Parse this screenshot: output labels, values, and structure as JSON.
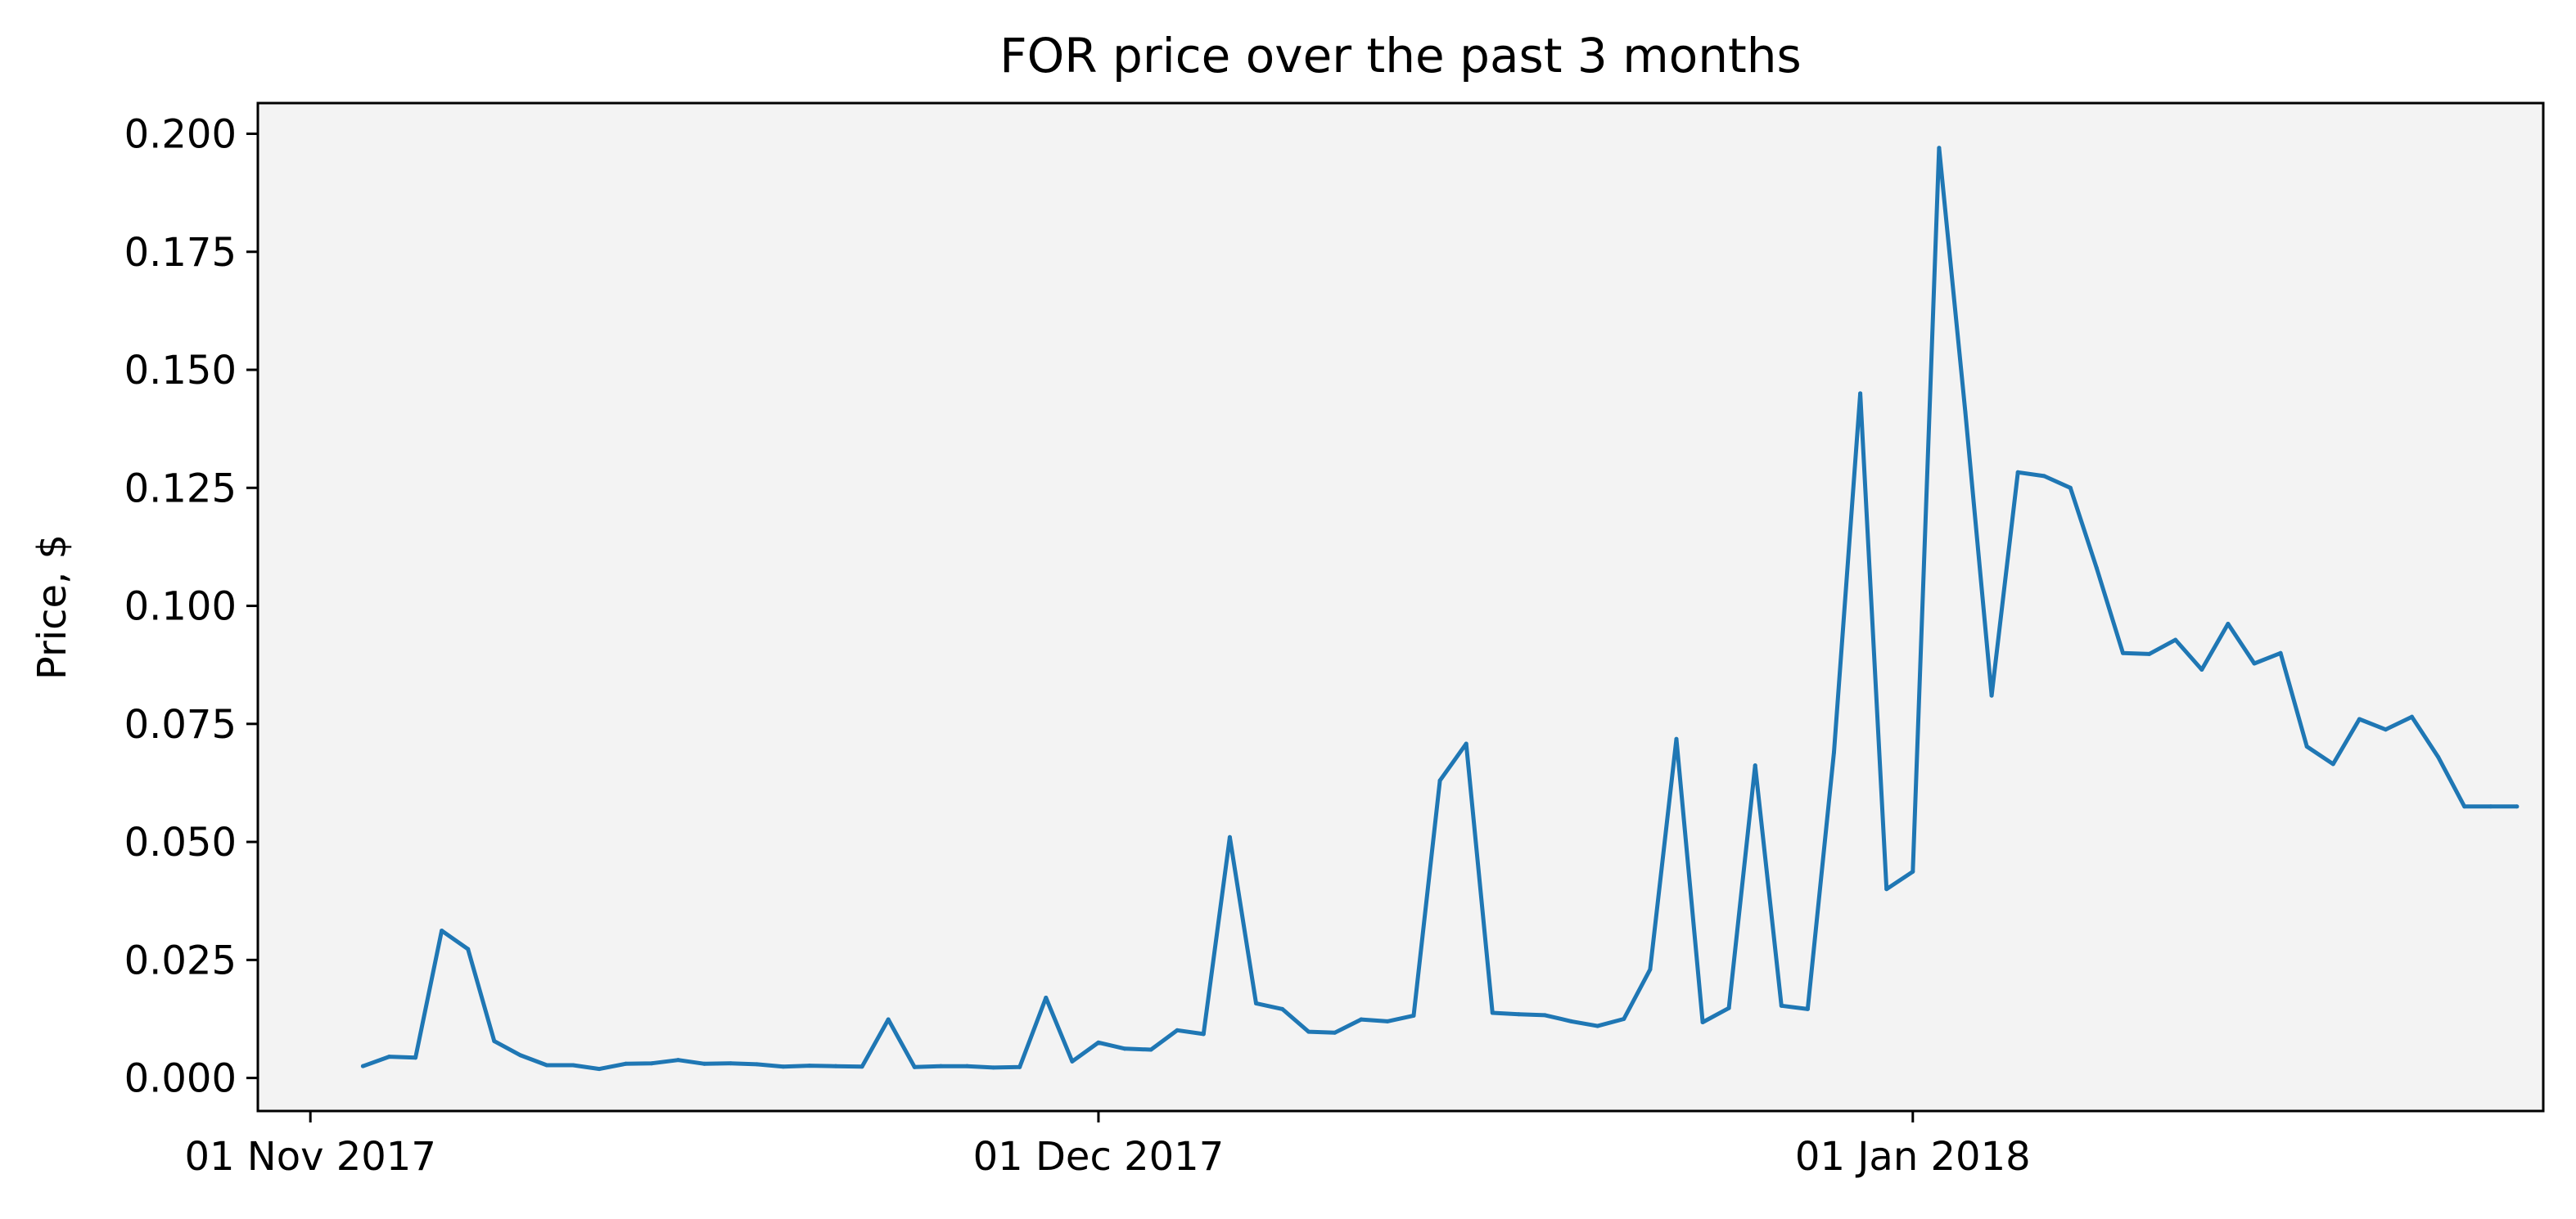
{
  "chart_data": {
    "type": "line",
    "title": "FOR price over the past 3 months",
    "xlabel": "",
    "ylabel": "Price, $",
    "x_tick_labels": [
      {
        "date": "2017-11-01",
        "label": "01 Nov 2017"
      },
      {
        "date": "2017-12-01",
        "label": "01 Dec 2017"
      },
      {
        "date": "2018-01-01",
        "label": "01 Jan 2018"
      }
    ],
    "y_ticks": [
      "0.000",
      "0.025",
      "0.050",
      "0.075",
      "0.100",
      "0.125",
      "0.150",
      "0.175",
      "0.200"
    ],
    "xlim": [
      "2017-10-30",
      "2018-01-25"
    ],
    "ylim": [
      -0.007,
      0.2065
    ],
    "grid": false,
    "colors": {
      "line": "#1f77b4",
      "plot_background": "#f3f3f3",
      "axes": "#000000"
    },
    "series": [
      {
        "x": [
          "2017-11-03",
          "2017-11-04",
          "2017-11-05",
          "2017-11-06",
          "2017-11-07",
          "2017-11-08",
          "2017-11-09",
          "2017-11-10",
          "2017-11-11",
          "2017-11-12",
          "2017-11-13",
          "2017-11-14",
          "2017-11-15",
          "2017-11-16",
          "2017-11-17",
          "2017-11-18",
          "2017-11-19",
          "2017-11-20",
          "2017-11-21",
          "2017-11-22",
          "2017-11-23",
          "2017-11-24",
          "2017-11-25",
          "2017-11-26",
          "2017-11-27",
          "2017-11-28",
          "2017-11-29",
          "2017-11-30",
          "2017-12-01",
          "2017-12-02",
          "2017-12-03",
          "2017-12-04",
          "2017-12-05",
          "2017-12-06",
          "2017-12-07",
          "2017-12-08",
          "2017-12-09",
          "2017-12-10",
          "2017-12-11",
          "2017-12-12",
          "2017-12-13",
          "2017-12-14",
          "2017-12-15",
          "2017-12-16",
          "2017-12-17",
          "2017-12-18",
          "2017-12-19",
          "2017-12-20",
          "2017-12-21",
          "2017-12-22",
          "2017-12-23",
          "2017-12-24",
          "2017-12-25",
          "2017-12-26",
          "2017-12-27",
          "2017-12-28",
          "2017-12-29",
          "2017-12-30",
          "2017-12-31",
          "2018-01-01",
          "2018-01-02",
          "2018-01-03",
          "2018-01-04",
          "2018-01-05",
          "2018-01-06",
          "2018-01-07",
          "2018-01-08",
          "2018-01-09",
          "2018-01-10",
          "2018-01-11",
          "2018-01-12",
          "2018-01-13",
          "2018-01-14",
          "2018-01-15",
          "2018-01-16",
          "2018-01-17",
          "2018-01-18",
          "2018-01-19",
          "2018-01-20",
          "2018-01-21",
          "2018-01-22",
          "2018-01-23",
          "2018-01-24"
        ],
        "y": [
          0.0025,
          0.0045,
          0.0043,
          0.0312,
          0.0273,
          0.0078,
          0.0048,
          0.0027,
          0.0027,
          0.0019,
          0.003,
          0.0031,
          0.0038,
          0.003,
          0.0031,
          0.0029,
          0.0024,
          0.0026,
          0.0025,
          0.0024,
          0.0124,
          0.0023,
          0.0025,
          0.0025,
          0.0022,
          0.0023,
          0.017,
          0.0035,
          0.0075,
          0.0062,
          0.006,
          0.0101,
          0.0093,
          0.051,
          0.0158,
          0.0146,
          0.0098,
          0.0096,
          0.0124,
          0.012,
          0.0132,
          0.063,
          0.0708,
          0.0138,
          0.0135,
          0.0133,
          0.012,
          0.011,
          0.0125,
          0.023,
          0.0718,
          0.0118,
          0.0148,
          0.0662,
          0.0153,
          0.0146,
          0.069,
          0.145,
          0.04,
          0.0437,
          0.197,
          0.141,
          0.081,
          0.1283,
          0.1275,
          0.125,
          0.108,
          0.09,
          0.0898,
          0.0928,
          0.0865,
          0.0962,
          0.0878,
          0.09,
          0.0702,
          0.0665,
          0.076,
          0.0738,
          0.0765,
          0.068,
          0.0575,
          0.0575,
          0.0575
        ]
      }
    ]
  }
}
